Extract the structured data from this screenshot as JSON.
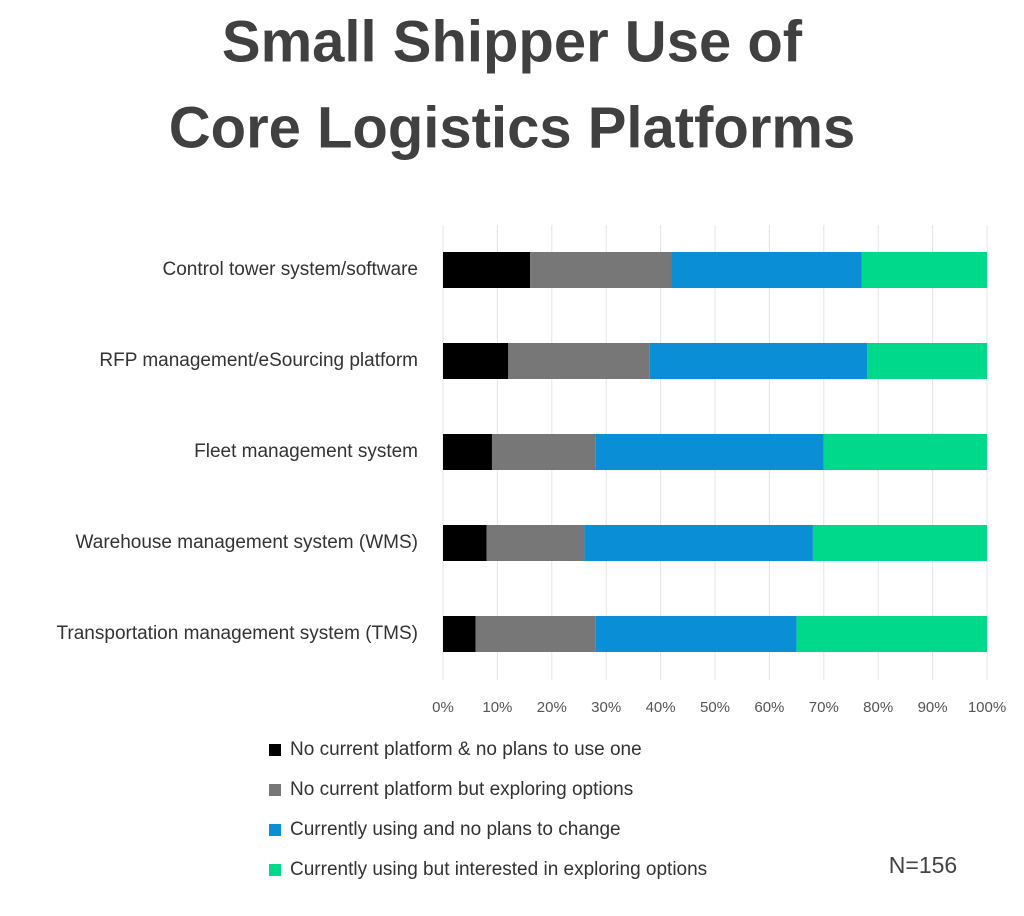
{
  "chart_data": {
    "type": "stacked-barh",
    "title": [
      "Small Shipper Use of",
      "Core Logistics Platforms"
    ],
    "categories": [
      "Control tower system/software",
      "RFP management/eSourcing platform",
      "Fleet management system",
      "Warehouse management system (WMS)",
      "Transportation management system (TMS)"
    ],
    "series": [
      {
        "name": "No current platform & no plans to use one",
        "color": "#000000",
        "values": [
          16,
          12,
          9,
          8,
          6
        ]
      },
      {
        "name": "No current platform but exploring options",
        "color": "#777777",
        "values": [
          26,
          26,
          19,
          18,
          22
        ]
      },
      {
        "name": "Currently using and no plans to change",
        "color": "#0a8fd6",
        "values": [
          35,
          40,
          42,
          42,
          37
        ]
      },
      {
        "name": "Currently using but interested in exploring options",
        "color": "#00d98b",
        "values": [
          23,
          22,
          30,
          32,
          35
        ]
      }
    ],
    "xlim": [
      0,
      100
    ],
    "xticks": [
      {
        "value": 0,
        "label": "0%"
      },
      {
        "value": 10,
        "label": "10%"
      },
      {
        "value": 20,
        "label": "20%"
      },
      {
        "value": 30,
        "label": "30%"
      },
      {
        "value": 40,
        "label": "40%"
      },
      {
        "value": 50,
        "label": "50%"
      },
      {
        "value": 60,
        "label": "60%"
      },
      {
        "value": 70,
        "label": "70%"
      },
      {
        "value": 80,
        "label": "80%"
      },
      {
        "value": 90,
        "label": "90%"
      },
      {
        "value": 100,
        "label": "100%"
      }
    ],
    "grid": true,
    "annotation": "N=156"
  }
}
